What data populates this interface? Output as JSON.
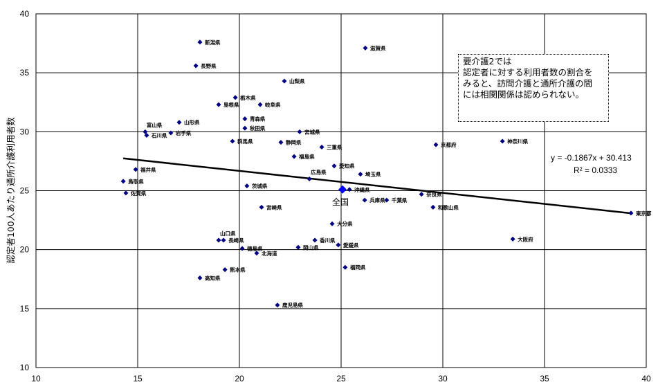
{
  "chart_data": {
    "type": "scatter",
    "title": "",
    "xlabel": "",
    "ylabel": "認定者100人あたり通所介護利用者数",
    "xlim": [
      10,
      40
    ],
    "ylim": [
      10,
      40
    ],
    "xticks": [
      10,
      15,
      20,
      25,
      30,
      35,
      40
    ],
    "yticks": [
      10,
      15,
      20,
      25,
      30,
      35,
      40
    ],
    "grid": true,
    "marker_color": "#000080",
    "points": [
      {
        "name": "新潟県",
        "x": 18.06,
        "y": 37.6
      },
      {
        "name": "長野県",
        "x": 17.86,
        "y": 35.6
      },
      {
        "name": "山梨県",
        "x": 22.21,
        "y": 34.3
      },
      {
        "name": "滋賀県",
        "x": 26.19,
        "y": 37.1
      },
      {
        "name": "栃木県",
        "x": 19.8,
        "y": 32.9
      },
      {
        "name": "島根県",
        "x": 18.98,
        "y": 32.3
      },
      {
        "name": "岐阜県",
        "x": 21.02,
        "y": 32.3
      },
      {
        "name": "青森県",
        "x": 20.27,
        "y": 31.1
      },
      {
        "name": "秋田県",
        "x": 20.27,
        "y": 30.3
      },
      {
        "name": "宮城県",
        "x": 22.96,
        "y": 30.0
      },
      {
        "name": "山形県",
        "x": 17.04,
        "y": 30.8
      },
      {
        "name": "富山県",
        "x": 15.37,
        "y": 30.0,
        "label_pos": "above"
      },
      {
        "name": "石川県",
        "x": 15.44,
        "y": 29.7
      },
      {
        "name": "岩手県",
        "x": 16.63,
        "y": 29.9
      },
      {
        "name": "群馬県",
        "x": 19.66,
        "y": 29.2
      },
      {
        "name": "静岡県",
        "x": 22.04,
        "y": 29.1
      },
      {
        "name": "三重県",
        "x": 24.05,
        "y": 28.7
      },
      {
        "name": "京都府",
        "x": 29.66,
        "y": 28.9
      },
      {
        "name": "神奈川県",
        "x": 32.93,
        "y": 29.2
      },
      {
        "name": "福島県",
        "x": 22.69,
        "y": 27.9
      },
      {
        "name": "愛知県",
        "x": 24.66,
        "y": 27.1
      },
      {
        "name": "福井県",
        "x": 14.9,
        "y": 26.8
      },
      {
        "name": "広島県",
        "x": 23.44,
        "y": 26.0,
        "label_pos": "above"
      },
      {
        "name": "埼玉県",
        "x": 25.95,
        "y": 26.4
      },
      {
        "name": "鳥取県",
        "x": 14.29,
        "y": 25.8
      },
      {
        "name": "佐賀県",
        "x": 14.42,
        "y": 24.8
      },
      {
        "name": "茨城県",
        "x": 20.37,
        "y": 25.4
      },
      {
        "name": "沖縄県",
        "x": 25.41,
        "y": 25.1
      },
      {
        "name": "兵庫県",
        "x": 26.16,
        "y": 24.2
      },
      {
        "name": "千葉県",
        "x": 27.24,
        "y": 24.2
      },
      {
        "name": "奈良県",
        "x": 28.95,
        "y": 24.7
      },
      {
        "name": "和歌山県",
        "x": 29.52,
        "y": 23.6
      },
      {
        "name": "東京都",
        "x": 39.25,
        "y": 23.1
      },
      {
        "name": "宮崎県",
        "x": 21.09,
        "y": 23.6
      },
      {
        "name": "大分県",
        "x": 24.56,
        "y": 22.2
      },
      {
        "name": "山口県",
        "x": 18.98,
        "y": 20.8,
        "label_pos": "above"
      },
      {
        "name": "長崎県",
        "x": 19.22,
        "y": 20.8
      },
      {
        "name": "徳島県",
        "x": 20.14,
        "y": 20.1
      },
      {
        "name": "北海道",
        "x": 20.85,
        "y": 19.7
      },
      {
        "name": "岡山県",
        "x": 22.89,
        "y": 20.2
      },
      {
        "name": "香川県",
        "x": 23.71,
        "y": 20.8
      },
      {
        "name": "愛媛県",
        "x": 24.86,
        "y": 20.4
      },
      {
        "name": "大阪府",
        "x": 33.44,
        "y": 20.9
      },
      {
        "name": "福岡県",
        "x": 25.2,
        "y": 18.5
      },
      {
        "name": "熊本県",
        "x": 19.29,
        "y": 18.3
      },
      {
        "name": "高知県",
        "x": 18.06,
        "y": 17.6
      },
      {
        "name": "鹿児島県",
        "x": 21.87,
        "y": 15.3
      }
    ],
    "national": {
      "name": "全国",
      "x": 25.07,
      "y": 25.1
    },
    "trendline": {
      "slope": -0.1867,
      "intercept": 30.413,
      "x_range": [
        14.29,
        39.25
      ]
    },
    "equation_text": "y = -0.1867x + 30.413",
    "r2_text": "R² = 0.0333",
    "annotation": [
      "要介護2では",
      "認定者に対する利用者数の割合を",
      "みると、訪問介護と通所介護の間",
      "には相関関係は認められない。"
    ]
  }
}
